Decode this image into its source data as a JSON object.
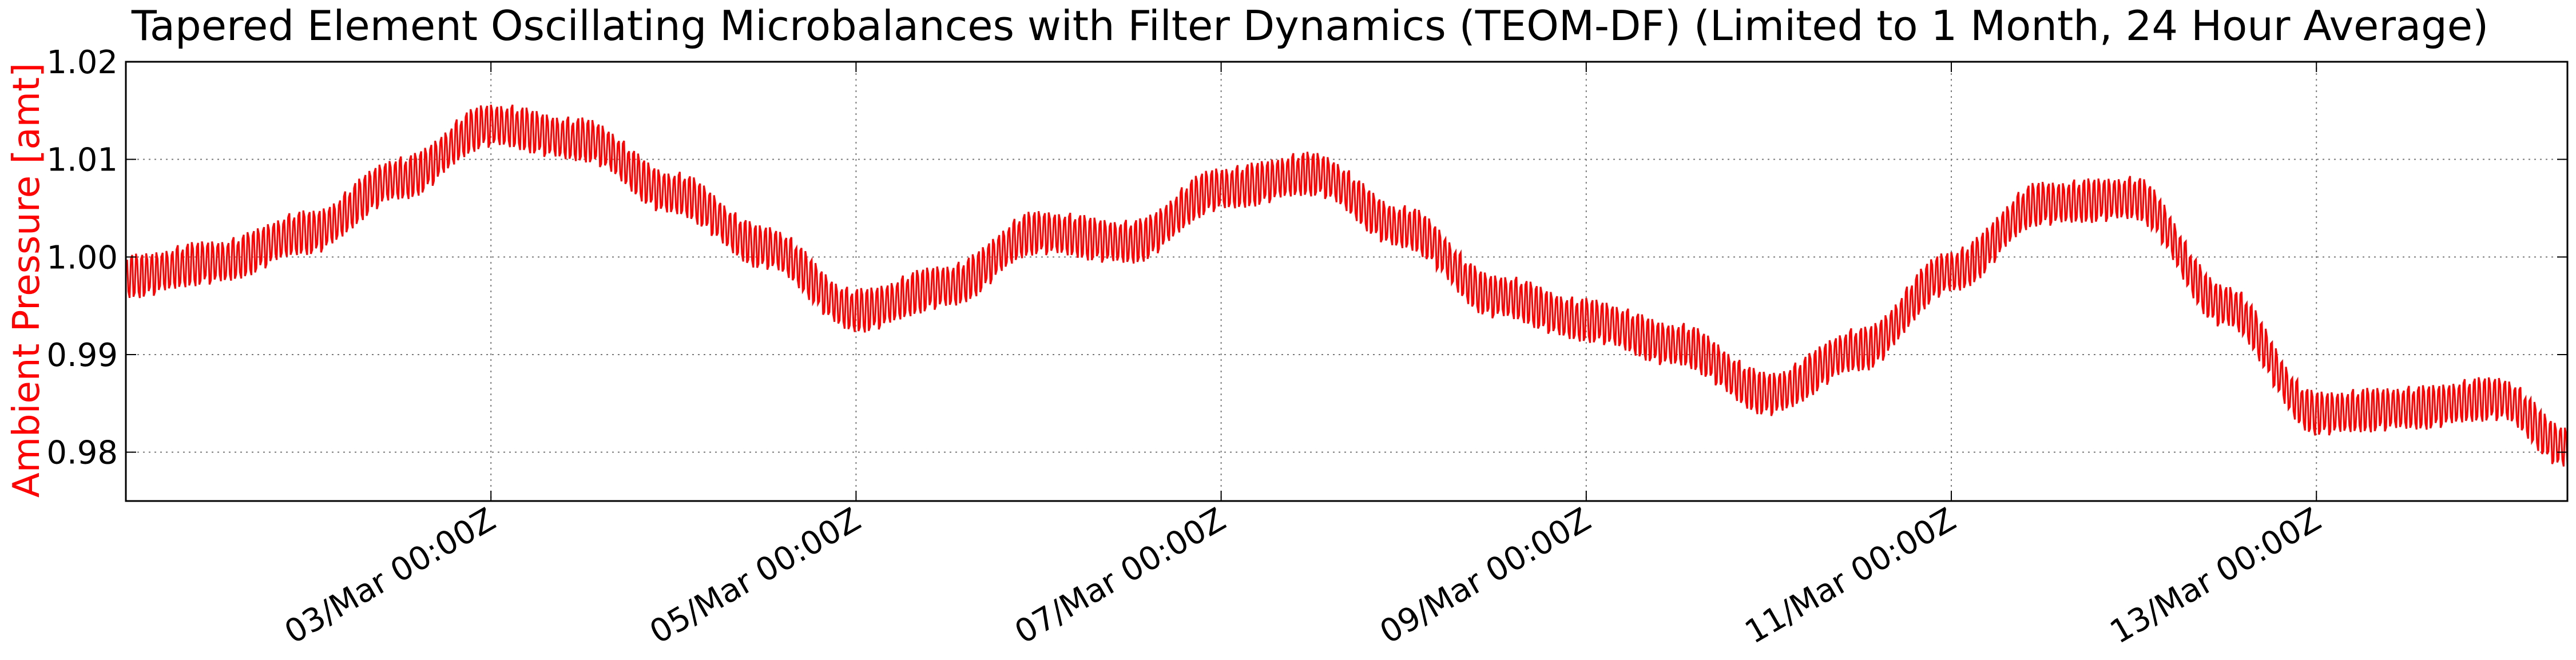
{
  "chart_data": {
    "type": "line",
    "title": "Tapered Element Oscillating Microbalances with Filter Dynamics (TEOM-DF) (Limited to 1 Month, 24 Hour Average)",
    "xlabel": "",
    "ylabel": "Ambient Pressure [amt]",
    "x_unit": "days",
    "xlim": [
      "2019-03-01T00:00Z",
      "2019-03-14T09:00Z"
    ],
    "ylim": [
      0.975,
      1.02
    ],
    "y_ticks": [
      0.98,
      0.99,
      1.0,
      1.01,
      1.02
    ],
    "y_tick_labels": [
      "0.98",
      "0.99",
      "1.00",
      "1.01",
      "1.02"
    ],
    "x_ticks": [
      "2019-03-03T00:00Z",
      "2019-03-05T00:00Z",
      "2019-03-07T00:00Z",
      "2019-03-09T00:00Z",
      "2019-03-11T00:00Z",
      "2019-03-13T00:00Z"
    ],
    "x_tick_labels": [
      "03/Mar 00:00Z",
      "05/Mar 00:00Z",
      "07/Mar 00:00Z",
      "09/Mar 00:00Z",
      "11/Mar 00:00Z",
      "13/Mar 00:00Z"
    ],
    "grid": true,
    "series": [
      {
        "name": "",
        "color": "#ff0000",
        "oscillation_amplitude": 0.0022,
        "envelope_x": [
          "2019-03-01T00:00Z",
          "2019-03-01T12:00Z",
          "2019-03-02T00:00Z",
          "2019-03-02T12:00Z",
          "2019-03-03T00:00Z",
          "2019-03-03T12:00Z",
          "2019-03-04T00:00Z",
          "2019-03-04T12:00Z",
          "2019-03-05T00:00Z",
          "2019-03-05T12:00Z",
          "2019-03-06T00:00Z",
          "2019-03-06T12:00Z",
          "2019-03-07T00:00Z",
          "2019-03-07T12:00Z",
          "2019-03-08T00:00Z",
          "2019-03-08T12:00Z",
          "2019-03-09T00:00Z",
          "2019-03-09T12:00Z",
          "2019-03-10T00:00Z",
          "2019-03-10T12:00Z",
          "2019-03-11T00:00Z",
          "2019-03-11T12:00Z",
          "2019-03-12T00:00Z",
          "2019-03-12T12:00Z",
          "2019-03-13T00:00Z",
          "2019-03-13T12:00Z",
          "2019-03-14T00:00Z",
          "2019-03-14T09:00Z"
        ],
        "envelope_y": [
          0.998,
          0.9995,
          1.0025,
          1.008,
          1.0135,
          1.012,
          1.0065,
          1.001,
          0.9945,
          0.997,
          1.0025,
          1.0015,
          1.007,
          1.0085,
          1.003,
          0.996,
          0.9935,
          0.991,
          0.986,
          0.9905,
          0.9985,
          1.0055,
          1.006,
          0.995,
          0.984,
          0.9845,
          0.9855,
          0.9805
        ]
      }
    ]
  }
}
